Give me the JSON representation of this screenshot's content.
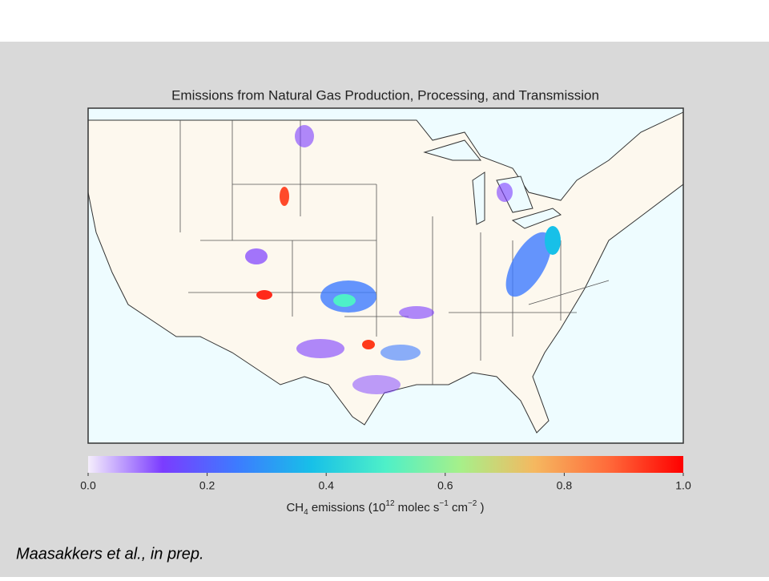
{
  "title": "Emissions from Natural Gas Production, Processing, and Transmission",
  "colorbar": {
    "colors": [
      "#f5eefc",
      "#7b3cff",
      "#3d7bff",
      "#17c0e8",
      "#4ef0c8",
      "#a6f08a",
      "#f5b860",
      "#ff6a3a",
      "#ff0000"
    ],
    "ticks": [
      {
        "value": 0,
        "label": "0.0"
      },
      {
        "value": 0.2,
        "label": "0.2"
      },
      {
        "value": 0.4,
        "label": "0.4"
      },
      {
        "value": 0.6,
        "label": "0.6"
      },
      {
        "value": 0.8,
        "label": "0.8"
      },
      {
        "value": 1,
        "label": "1.0"
      }
    ],
    "label": [
      {
        "text": "CH"
      },
      {
        "sub": "4"
      },
      {
        "text": " emissions (10"
      },
      {
        "sup": "12"
      },
      {
        "text": " molec s"
      },
      {
        "sup": "−1"
      },
      {
        "text": " cm"
      },
      {
        "sup": "−2"
      },
      {
        "text": " )"
      }
    ]
  },
  "citation": "Maasakkers et al., in prep."
}
